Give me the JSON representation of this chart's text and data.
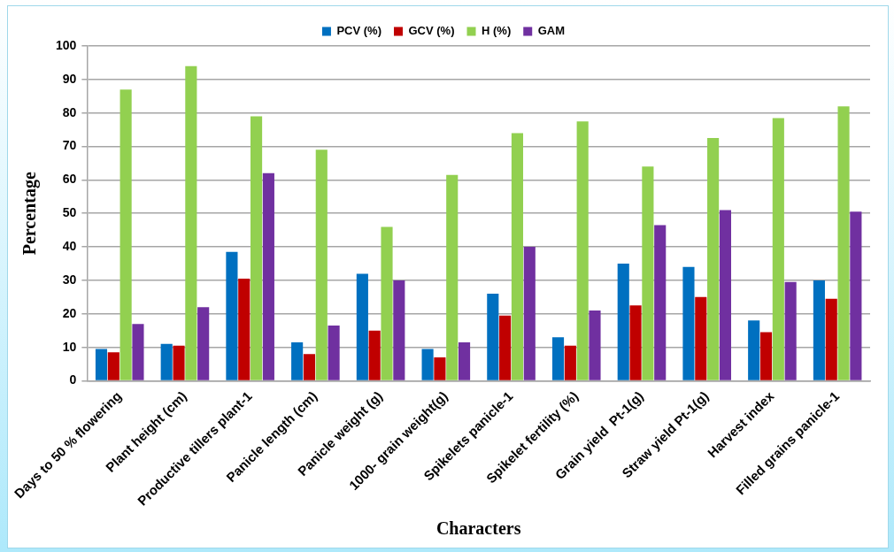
{
  "chart_data": {
    "type": "bar",
    "xlabel": "Characters",
    "ylabel": "Percentage",
    "categories": [
      "Days to 50 % flowering",
      "Plant height (cm)",
      "Productive tillers plant-1",
      "Panicle length (cm)",
      "Panicle weight (g)",
      "1000- grain weight(g)",
      "Spikelets panicle-1",
      "Spikelet fertility (%)",
      "Grain yield  Pt-1(g)",
      "Straw yield Pt-1(g)",
      "Harvest index",
      "Filled grains panicle-1"
    ],
    "series": [
      {
        "name": "PCV (%)",
        "color": "#0070c0",
        "values": [
          9.5,
          11,
          38.5,
          11.5,
          32,
          9.5,
          26,
          13,
          35,
          34,
          18,
          30
        ]
      },
      {
        "name": "GCV (%)",
        "color": "#c00000",
        "values": [
          8.5,
          10.5,
          30.5,
          8,
          15,
          7,
          19.5,
          10.5,
          22.5,
          25,
          14.5,
          24.5
        ]
      },
      {
        "name": "H (%)",
        "color": "#92d050",
        "values": [
          87,
          94,
          79,
          69,
          46,
          61.5,
          74,
          77.5,
          64,
          72.5,
          78.5,
          82
        ]
      },
      {
        "name": "GAM",
        "color": "#7030a0",
        "values": [
          17,
          22,
          62,
          16.5,
          30,
          11.5,
          40,
          21,
          46.5,
          51,
          29.5,
          50.5
        ]
      }
    ],
    "ylim": [
      0,
      100
    ],
    "yticks": [
      0,
      10,
      20,
      30,
      40,
      50,
      60,
      70,
      80,
      90,
      100
    ],
    "grid": "y",
    "legend": "top"
  }
}
